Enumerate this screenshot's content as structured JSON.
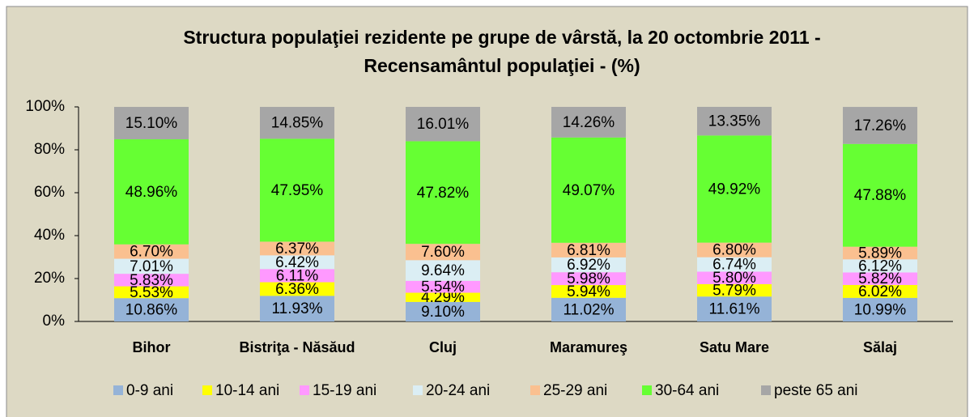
{
  "chart_data": {
    "type": "stacked_bar",
    "title": [
      "Structura populaţiei rezidente pe grupe de vârstă, la 20 octombrie 2011 -",
      "Recensamântul populaţiei -  (%)"
    ],
    "categories": [
      "Bihor",
      "Bistriţa - Năsăud",
      "Cluj",
      "Maramureş",
      "Satu Mare",
      "Sălaj"
    ],
    "ylim": [
      0,
      100
    ],
    "yticks": [
      {
        "value": 0,
        "label": "0%"
      },
      {
        "value": 20,
        "label": "20%"
      },
      {
        "value": 40,
        "label": "40%"
      },
      {
        "value": 60,
        "label": "60%"
      },
      {
        "value": 80,
        "label": "80%"
      },
      {
        "value": 100,
        "label": "100%"
      }
    ],
    "legend": "bottom",
    "series": [
      {
        "name": "0-9 ani",
        "color": "#95b3d7",
        "values": [
          10.86,
          11.93,
          9.1,
          11.02,
          11.61,
          10.99
        ],
        "value_labels": [
          "10.86%",
          "11.93%",
          "9.10%",
          "11.02%",
          "11.61%",
          "10.99%"
        ]
      },
      {
        "name": "10-14 ani",
        "color": "#ffff00",
        "values": [
          5.53,
          6.36,
          4.29,
          5.94,
          5.79,
          6.02
        ],
        "value_labels": [
          "5.53%",
          "6.36%",
          "4.29%",
          "5.94%",
          "5.79%",
          "6.02%"
        ]
      },
      {
        "name": "15-19 ani",
        "color": "#ff99ff",
        "values": [
          5.83,
          6.11,
          5.54,
          5.98,
          5.8,
          5.82
        ],
        "value_labels": [
          "5.83%",
          "6.11%",
          "5.54%",
          "5.98%",
          "5.80%",
          "5.82%"
        ]
      },
      {
        "name": "20-24 ani",
        "color": "#dbeef4",
        "values": [
          7.01,
          6.42,
          9.64,
          6.92,
          6.74,
          6.12
        ],
        "value_labels": [
          "7.01%",
          "6.42%",
          "9.64%",
          "6.92%",
          "6.74%",
          "6.12%"
        ]
      },
      {
        "name": "25-29 ani",
        "color": "#fac090",
        "values": [
          6.7,
          6.37,
          7.6,
          6.81,
          6.8,
          5.89
        ],
        "value_labels": [
          "6.70%",
          "6.37%",
          "7.60%",
          "6.81%",
          "6.80%",
          "5.89%"
        ]
      },
      {
        "name": "30-64 ani",
        "color": "#66ff33",
        "values": [
          48.96,
          47.95,
          47.82,
          49.07,
          49.92,
          47.88
        ],
        "value_labels": [
          "48.96%",
          "47.95%",
          "47.82%",
          "49.07%",
          "49.92%",
          "47.88%"
        ]
      },
      {
        "name": "peste 65 ani",
        "color": "#a6a6a6",
        "values": [
          15.1,
          14.85,
          16.01,
          14.26,
          13.35,
          17.26
        ],
        "value_labels": [
          "15.10%",
          "14.85%",
          "16.01%",
          "14.26%",
          "13.35%",
          "17.26%"
        ]
      }
    ]
  }
}
